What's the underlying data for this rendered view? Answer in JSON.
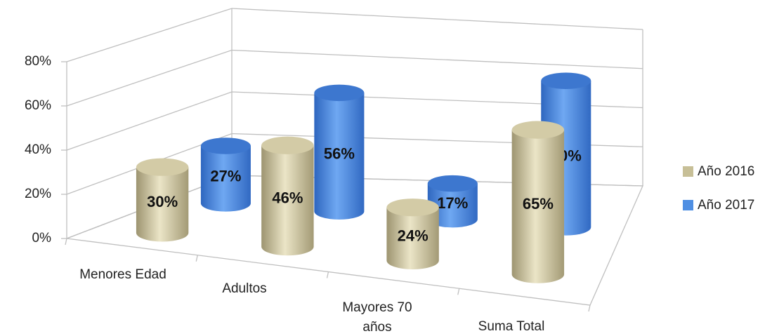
{
  "chart_data": {
    "type": "bar3d",
    "categories": [
      "Menores Edad",
      "Adultos",
      "Mayores 70 años",
      "Suma Total"
    ],
    "series": [
      {
        "name": "Año 2016",
        "color": "#c7bf97",
        "values": [
          30,
          46,
          24,
          65
        ],
        "value_labels": [
          "30%",
          "46%",
          "24%",
          "65%"
        ]
      },
      {
        "name": "Año 2017",
        "color": "#4f8fe3",
        "values": [
          27,
          56,
          17,
          70
        ],
        "value_labels": [
          "27%",
          "56%",
          "17%",
          "70%"
        ]
      }
    ],
    "ylim": [
      0,
      80
    ],
    "yticks": [
      {
        "value": 0,
        "label": "0%"
      },
      {
        "value": 20,
        "label": "20%"
      },
      {
        "value": 40,
        "label": "40%"
      },
      {
        "value": 60,
        "label": "60%"
      },
      {
        "value": 80,
        "label": "80%"
      }
    ],
    "grid": true,
    "legend": "right"
  }
}
